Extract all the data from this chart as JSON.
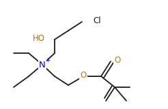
{
  "bg_color": "#ffffff",
  "line_color": "#1a1a1a",
  "lw": 1.3,
  "figsize": [
    2.46,
    1.6
  ],
  "dpi": 100,
  "xlim": [
    0,
    246
  ],
  "ylim": [
    0,
    160
  ]
}
